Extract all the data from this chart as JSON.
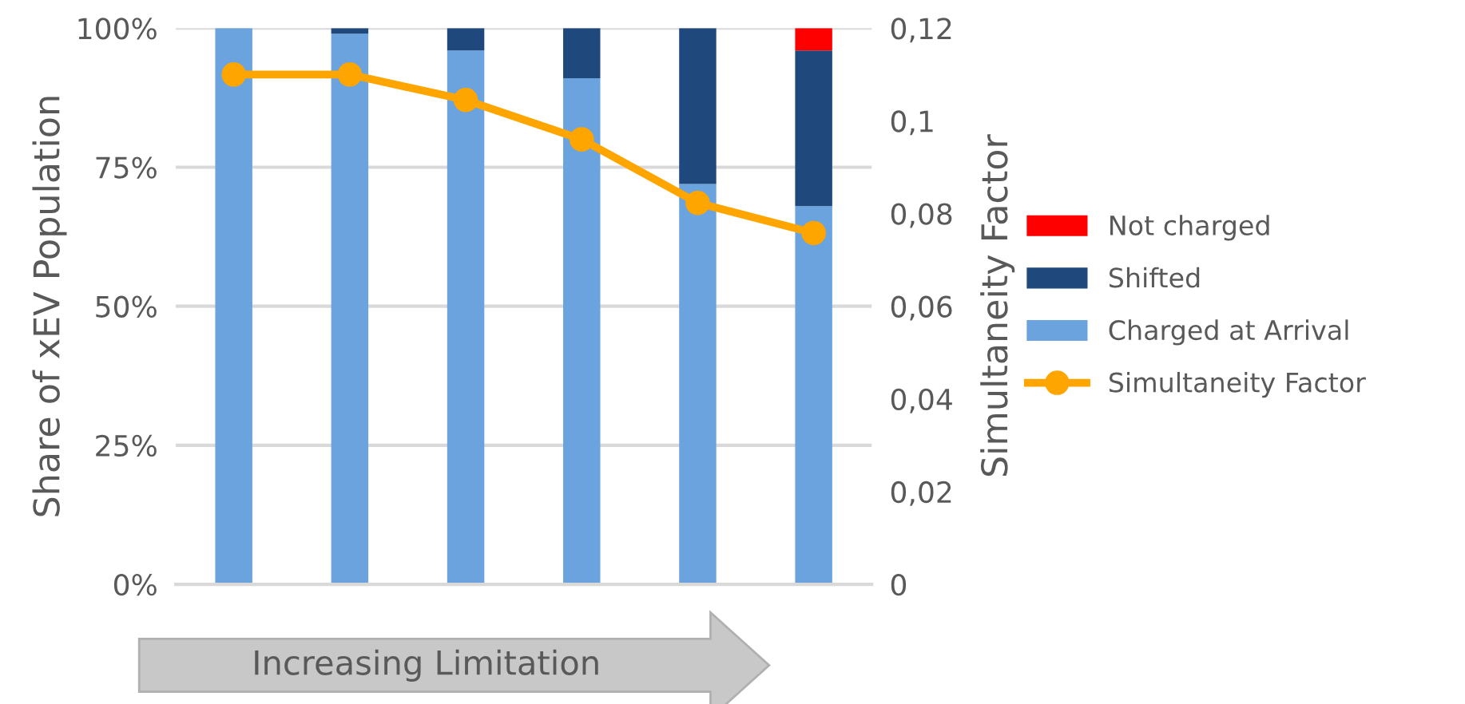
{
  "chart_data": {
    "type": "bar",
    "stacked": true,
    "categories": [
      null,
      null,
      null,
      null,
      null,
      null
    ],
    "series": [
      {
        "name": "Charged at Arrival",
        "color": "#6aa3de",
        "values": [
          100,
          99,
          96,
          91,
          72,
          68
        ]
      },
      {
        "name": "Shifted",
        "color": "#1f497d",
        "values": [
          0,
          1,
          4,
          9,
          28,
          28
        ]
      },
      {
        "name": "Not charged",
        "color": "#ff0000",
        "values": [
          0,
          0,
          0,
          0,
          0,
          4
        ]
      },
      {
        "name": "Simultaneity Factor",
        "type": "line",
        "axis": "y2",
        "color": "#ffa500",
        "marker": "circle",
        "values": [
          0.11,
          0.11,
          0.1045,
          0.096,
          0.0823,
          0.0758
        ]
      }
    ],
    "ylabel": "Share of xEV Population",
    "y2label": "Simultaneity Factor",
    "xlabel": "Increasing Limitation",
    "ylim": [
      0,
      100
    ],
    "yticks": [
      {
        "value": 0,
        "label": "0%"
      },
      {
        "value": 25,
        "label": "25%"
      },
      {
        "value": 50,
        "label": "50%"
      },
      {
        "value": 75,
        "label": "75%"
      },
      {
        "value": 100,
        "label": "100%"
      }
    ],
    "y2lim": [
      0,
      0.12
    ],
    "y2ticks": [
      {
        "value": 0,
        "label": "0"
      },
      {
        "value": 0.02,
        "label": "0,02"
      },
      {
        "value": 0.04,
        "label": "0,04"
      },
      {
        "value": 0.06,
        "label": "0,06"
      },
      {
        "value": 0.08,
        "label": "0,08"
      },
      {
        "value": 0.1,
        "label": "0,1"
      },
      {
        "value": 0.12,
        "label": "0,12"
      }
    ],
    "grid": "y",
    "legend": "right"
  }
}
